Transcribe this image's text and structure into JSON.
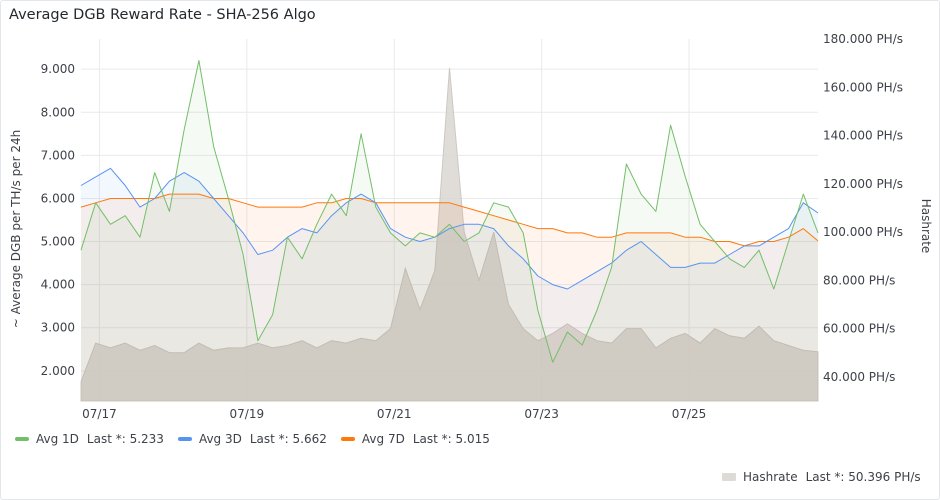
{
  "panel": {
    "title": "Average DGB Reward Rate - SHA-256 Algo"
  },
  "colors": {
    "avg1d": "#73bf69",
    "avg3d": "#5794f2",
    "avg7d": "#ff780a",
    "hashrate": "#cbc6c0"
  },
  "legend": {
    "avg1d": {
      "name": "Avg 1D",
      "last": "Last *: 5.233"
    },
    "avg3d": {
      "name": "Avg 3D",
      "last": "Last *: 5.662"
    },
    "avg7d": {
      "name": "Avg 7D",
      "last": "Last *: 5.015"
    },
    "hashrate": {
      "name": "Hashrate",
      "last": "Last *: 50.396 PH/s"
    }
  },
  "chart_data": {
    "type": "line",
    "x_ticks": [
      "07/17",
      "07/19",
      "07/21",
      "07/23",
      "07/25"
    ],
    "x_range": [
      "07/16 18:00",
      "07/26 18:00"
    ],
    "left_axis": {
      "label": "~ Average DGB per TH/s per 24h",
      "range": [
        1.3,
        9.7
      ],
      "ticks": [
        "2.000",
        "3.000",
        "4.000",
        "5.000",
        "6.000",
        "7.000",
        "8.000",
        "9.000"
      ]
    },
    "right_axis": {
      "label": "Hashrate",
      "unit": "PH/s",
      "range": [
        30,
        180
      ],
      "ticks": [
        "40.000 PH/s",
        "60.000 PH/s",
        "80.000 PH/s",
        "100.000 PH/s",
        "120.000 PH/s",
        "140.000 PH/s",
        "160.000 PH/s",
        "180.000 PH/s"
      ]
    },
    "grid": true,
    "legend_position": "bottom",
    "series": [
      {
        "key": "avg1d",
        "name": "Avg 1D",
        "axis": "left",
        "x": [
          0,
          0.2,
          0.4,
          0.6,
          0.8,
          1.0,
          1.2,
          1.4,
          1.6,
          1.8,
          2.0,
          2.2,
          2.4,
          2.6,
          2.8,
          3.0,
          3.2,
          3.4,
          3.6,
          3.8,
          4.0,
          4.2,
          4.4,
          4.6,
          4.8,
          5.0,
          5.2,
          5.4,
          5.6,
          5.8,
          6.0,
          6.2,
          6.4,
          6.6,
          6.8,
          7.0,
          7.2,
          7.4,
          7.6,
          7.8,
          8.0,
          8.2,
          8.4,
          8.6,
          8.8,
          9.0,
          9.2,
          9.4,
          9.6,
          9.8,
          10.0
        ],
        "y": [
          4.8,
          5.9,
          5.4,
          5.6,
          5.1,
          6.6,
          5.7,
          7.6,
          9.2,
          7.2,
          6.0,
          4.7,
          2.7,
          3.3,
          5.1,
          4.6,
          5.4,
          6.1,
          5.6,
          7.5,
          5.8,
          5.2,
          4.9,
          5.2,
          5.1,
          5.4,
          5.0,
          5.2,
          5.9,
          5.8,
          5.2,
          3.4,
          2.2,
          2.9,
          2.6,
          3.4,
          4.4,
          6.8,
          6.1,
          5.7,
          7.7,
          6.5,
          5.4,
          5.0,
          4.6,
          4.4,
          4.8,
          3.9,
          5.0,
          6.1,
          5.2
        ]
      },
      {
        "key": "avg3d",
        "name": "Avg 3D",
        "axis": "left",
        "x": [
          0,
          0.2,
          0.4,
          0.6,
          0.8,
          1.0,
          1.2,
          1.4,
          1.6,
          1.8,
          2.0,
          2.2,
          2.4,
          2.6,
          2.8,
          3.0,
          3.2,
          3.4,
          3.6,
          3.8,
          4.0,
          4.2,
          4.4,
          4.6,
          4.8,
          5.0,
          5.2,
          5.4,
          5.6,
          5.8,
          6.0,
          6.2,
          6.4,
          6.6,
          6.8,
          7.0,
          7.2,
          7.4,
          7.6,
          7.8,
          8.0,
          8.2,
          8.4,
          8.6,
          8.8,
          9.0,
          9.2,
          9.4,
          9.6,
          9.8,
          10.0
        ],
        "y": [
          6.3,
          6.5,
          6.7,
          6.3,
          5.8,
          6.0,
          6.4,
          6.6,
          6.4,
          6.0,
          5.6,
          5.2,
          4.7,
          4.8,
          5.1,
          5.3,
          5.2,
          5.6,
          5.9,
          6.1,
          5.9,
          5.3,
          5.1,
          5.0,
          5.1,
          5.3,
          5.4,
          5.4,
          5.3,
          4.9,
          4.6,
          4.2,
          4.0,
          3.9,
          4.1,
          4.3,
          4.5,
          4.8,
          5.0,
          4.7,
          4.4,
          4.4,
          4.5,
          4.5,
          4.7,
          4.9,
          4.9,
          5.1,
          5.3,
          5.9,
          5.662
        ]
      },
      {
        "key": "avg7d",
        "name": "Avg 7D",
        "axis": "left",
        "x": [
          0,
          0.2,
          0.4,
          0.6,
          0.8,
          1.0,
          1.2,
          1.4,
          1.6,
          1.8,
          2.0,
          2.2,
          2.4,
          2.6,
          2.8,
          3.0,
          3.2,
          3.4,
          3.6,
          3.8,
          4.0,
          4.2,
          4.4,
          4.6,
          4.8,
          5.0,
          5.2,
          5.4,
          5.6,
          5.8,
          6.0,
          6.2,
          6.4,
          6.6,
          6.8,
          7.0,
          7.2,
          7.4,
          7.6,
          7.8,
          8.0,
          8.2,
          8.4,
          8.6,
          8.8,
          9.0,
          9.2,
          9.4,
          9.6,
          9.8,
          10.0
        ],
        "y": [
          5.8,
          5.9,
          6.0,
          6.0,
          6.0,
          6.0,
          6.1,
          6.1,
          6.1,
          6.0,
          6.0,
          5.9,
          5.8,
          5.8,
          5.8,
          5.8,
          5.9,
          5.9,
          6.0,
          6.0,
          5.9,
          5.9,
          5.9,
          5.9,
          5.9,
          5.9,
          5.8,
          5.7,
          5.6,
          5.5,
          5.4,
          5.3,
          5.3,
          5.2,
          5.2,
          5.1,
          5.1,
          5.2,
          5.2,
          5.2,
          5.2,
          5.1,
          5.1,
          5.0,
          5.0,
          4.9,
          5.0,
          5.0,
          5.1,
          5.3,
          5.015
        ]
      },
      {
        "key": "hashrate",
        "name": "Hashrate",
        "axis": "right",
        "style": "area",
        "x": [
          0,
          0.2,
          0.4,
          0.6,
          0.8,
          1.0,
          1.2,
          1.4,
          1.6,
          1.8,
          2.0,
          2.2,
          2.4,
          2.6,
          2.8,
          3.0,
          3.2,
          3.4,
          3.6,
          3.8,
          4.0,
          4.2,
          4.4,
          4.6,
          4.8,
          5.0,
          5.2,
          5.4,
          5.6,
          5.8,
          6.0,
          6.2,
          6.4,
          6.6,
          6.8,
          7.0,
          7.2,
          7.4,
          7.6,
          7.8,
          8.0,
          8.2,
          8.4,
          8.6,
          8.8,
          9.0,
          9.2,
          9.4,
          9.6,
          9.8,
          10.0
        ],
        "y": [
          38,
          54,
          52,
          54,
          51,
          53,
          50,
          50,
          54,
          51,
          52,
          52,
          54,
          52,
          53,
          55,
          52,
          55,
          54,
          56,
          55,
          60,
          85,
          68,
          84,
          168,
          100,
          80,
          100,
          70,
          60,
          55,
          58,
          62,
          58,
          55,
          54,
          60,
          60,
          52,
          56,
          58,
          54,
          60,
          57,
          56,
          61,
          55,
          53,
          51,
          50.396
        ]
      }
    ]
  }
}
